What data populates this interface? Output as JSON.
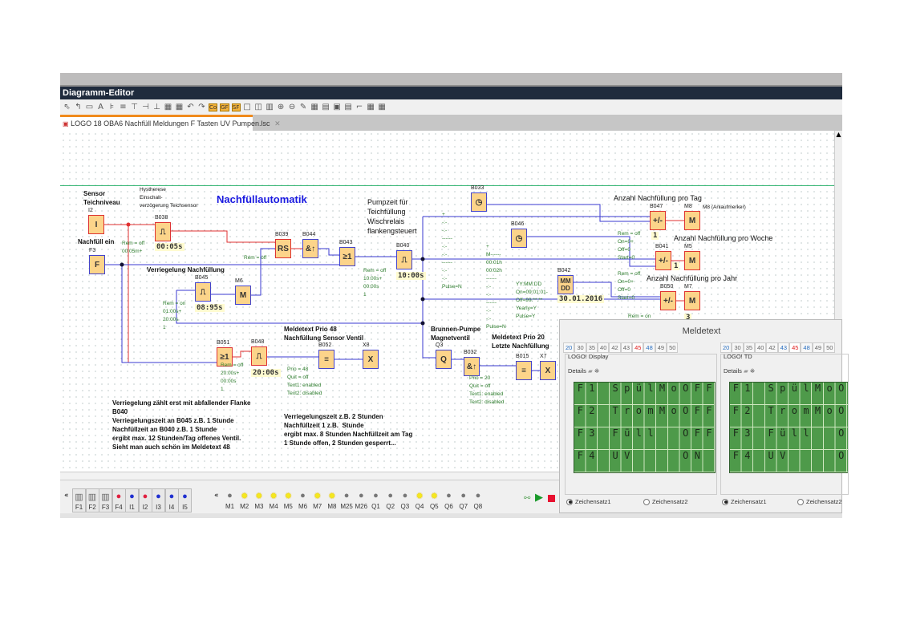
{
  "window": {
    "title": "Diagramm-Editor"
  },
  "toolbar": {
    "icons": [
      "select-icon",
      "connect-icon",
      "constant-icon",
      "text-icon",
      "align-left-icon",
      "align-center-icon",
      "align-top-icon",
      "align-middle-icon",
      "align-bottom-icon",
      "group-icon",
      "ungroup-icon",
      "undo-icon",
      "redo-icon",
      "co-icon",
      "gf-icon",
      "sf-icon",
      "single-view-icon",
      "split-view-icon",
      "triple-view-icon",
      "zoom-in-icon",
      "zoom-out-icon",
      "pen-icon",
      "table-icon",
      "block-icon",
      "simulation-icon",
      "online-test-icon",
      "pulse-icon",
      "grid-icon",
      "grid2-icon"
    ],
    "glyphs": [
      "⇖",
      "↰",
      "▭",
      "A",
      "⊧",
      "≡",
      "⊤",
      "⊣",
      "⊥",
      "▦",
      "▦",
      "↶",
      "↷",
      "Co",
      "GF",
      "SF",
      "□",
      "◫",
      "▥",
      "⊕",
      "⊖",
      "✎",
      "▦",
      "▤",
      "▣",
      "▤",
      "⌐",
      "▦",
      "▦"
    ]
  },
  "tab": {
    "label": "LOGO 18 OBA6 Nachfüll Meldungen F Tasten UV Pumpen.lsc",
    "close": "✕"
  },
  "notes": {
    "title": "Nachfüllautomatik",
    "sensor": "Sensor\nTeichniveau",
    "hyst": "Hystherese\nEinschalt-\nverzögerung Teichsensor",
    "nachfuell": "Nachfüll ein",
    "verr": "Verriegelung Nachfüllung",
    "pump": "Pumpzeit für\nTeichfüllung\nWischrelais\nflankengsteuert",
    "tag": "Anzahl Nachfüllung pro Tag",
    "m8note": "M8 (Anlaufmerker)",
    "woche": "Anzahl Nachfüllung pro Woche",
    "jahr": "Anzahl Nachfüllung pro Jahr",
    "meld48": "Meldetext Prio 48\nNachfüllung Sensor Ventil",
    "brunnen": "Brunnen-Pumpe\nMagnetventil",
    "meld20": "Meldetext Prio 20\nLetzte Nachfüllung",
    "left_text": "Verriegelung zählt erst mit abfallender Flanke\nB040\nVerriegelungszeit an B045 z.B. 1 Stunde\nNachfüllzeit an B040 z.B. 1 Stunde\nergibt max. 12 Stunden/Tag offenes Ventil.\nSieht man auch schön im Meldetext 48",
    "right_text": "Verriegelungszeit z.B. 2 Stunden\nNachfüllzeit 1 z.B.  Stunde\nergibt max. 8 Stunden Nachfüllzeit am Tag\n1 Stunde offen, 2 Stunden gesperrt..."
  },
  "blocks": [
    {
      "id": "I2",
      "sym": "I"
    },
    {
      "id": "F3",
      "sym": "F"
    },
    {
      "id": "B038",
      "sym": "⎍",
      "value": "00:05s",
      "params": "Rem = off\n00:05m+"
    },
    {
      "id": "B039",
      "sym": "RS",
      "params": "Rem = off"
    },
    {
      "id": "B044",
      "sym": "&↑"
    },
    {
      "id": "B043",
      "sym": "≥1"
    },
    {
      "id": "B040",
      "sym": "⎍",
      "value": "10:00s",
      "params": "Rem = off\n10:00s+\n00:00s\n1"
    },
    {
      "id": "B045",
      "sym": "⎍",
      "value": "08:95s",
      "params": "Rem = on\n01:00s+\n20:00s\n1"
    },
    {
      "id": "M6",
      "sym": "M"
    },
    {
      "id": "B033",
      "sym": "◷",
      "params": "+\n-:-\n-:-\n------\n-:-\n-:-\n------\n-:-\n-:-\nPulse=N"
    },
    {
      "id": "B046",
      "sym": "◷",
      "params": "+\nM------\n00:01h\n00:02h\n------\n-:-\n-:-\n------\n-:-\n-:-\nPulse=N"
    },
    {
      "id": "B047",
      "sym": "+/-",
      "value": "1",
      "params": "Rem = off\nOn=0+\nOff=0\nStart=0"
    },
    {
      "id": "M8",
      "sym": "M"
    },
    {
      "id": "B041",
      "sym": "+/-",
      "value": "1",
      "params": "Rem = off\nOn=0+\nOff=0\nStart=0"
    },
    {
      "id": "M5",
      "sym": "M"
    },
    {
      "id": "B042",
      "sym": "MM DD",
      "value": "30.01.2016",
      "params": "YY:MM:DD\nOn=09:01:01-\nOff=99:**:**\nYearly=Y\nPulse=Y"
    },
    {
      "id": "B050",
      "sym": "+/-",
      "value": "3",
      "params": "Rem = on"
    },
    {
      "id": "M7",
      "sym": "M"
    },
    {
      "id": "B051",
      "sym": "≥1"
    },
    {
      "id": "B048",
      "sym": "⎍",
      "value": "20:00s",
      "params": "Rem = off\n20:00s+\n00:00s\n1"
    },
    {
      "id": "B052",
      "sym": "≡",
      "params": "Prio = 48\nQuit = off\nText1: enabled\nText2: disabled"
    },
    {
      "id": "X8",
      "sym": "X"
    },
    {
      "id": "Q3",
      "sym": "Q"
    },
    {
      "id": "B032",
      "sym": "&↑",
      "params": "Prio = 20\nQuit = off\nText1: enabled\nText2: disabled"
    },
    {
      "id": "B015",
      "sym": "≡"
    },
    {
      "id": "X7",
      "sym": "X"
    }
  ],
  "meldetext": {
    "title": "Meldetext",
    "tabs": [
      "20",
      "30",
      "35",
      "40",
      "42",
      "43",
      "45",
      "48",
      "49",
      "50"
    ],
    "selected_tab": "45",
    "display": {
      "label": "LOGO! Display",
      "details": "Details"
    },
    "td": {
      "label": "LOGO! TD",
      "details": "Details"
    },
    "rows": [
      "F1 SpülMoOFF",
      "F2 TromMoOFF",
      "F3 Füll  OFF",
      "F4 UV    ON "
    ],
    "charset1": "Zeichensatz1",
    "charset2": "Zeichensatz2",
    "charset_selected": "Zeichensatz1",
    "lcd_color": "#4e9a4a"
  },
  "iobar": {
    "inputs": [
      {
        "label": "F1",
        "type": "f"
      },
      {
        "label": "F2",
        "type": "f"
      },
      {
        "label": "F3",
        "type": "f"
      },
      {
        "label": "F4",
        "state": 1
      },
      {
        "label": "I1",
        "state": 0
      },
      {
        "label": "I2",
        "state": 1
      },
      {
        "label": "I3",
        "state": 0
      },
      {
        "label": "I4",
        "state": 0
      },
      {
        "label": "I5",
        "state": 0
      }
    ],
    "outputs": [
      {
        "label": "M1",
        "on": false
      },
      {
        "label": "M2",
        "on": true
      },
      {
        "label": "M3",
        "on": true
      },
      {
        "label": "M4",
        "on": true
      },
      {
        "label": "M5",
        "on": true
      },
      {
        "label": "M6",
        "on": false
      },
      {
        "label": "M7",
        "on": true
      },
      {
        "label": "M8",
        "on": true
      },
      {
        "label": "M25",
        "on": false
      },
      {
        "label": "M26",
        "on": false
      },
      {
        "label": "Q1",
        "on": false
      },
      {
        "label": "Q2",
        "on": false
      },
      {
        "label": "Q3",
        "on": false
      },
      {
        "label": "Q4",
        "on": true
      },
      {
        "label": "Q5",
        "on": true
      },
      {
        "label": "Q6",
        "on": false
      },
      {
        "label": "Q7",
        "on": false
      },
      {
        "label": "Q8",
        "on": false
      }
    ],
    "collapse": "«"
  },
  "colors": {
    "wire_active": "#e03030",
    "wire": "#3a3ad0",
    "block": "#fcd48a",
    "lamp_on": "#f5e81e",
    "lamp_off": "#777777"
  }
}
